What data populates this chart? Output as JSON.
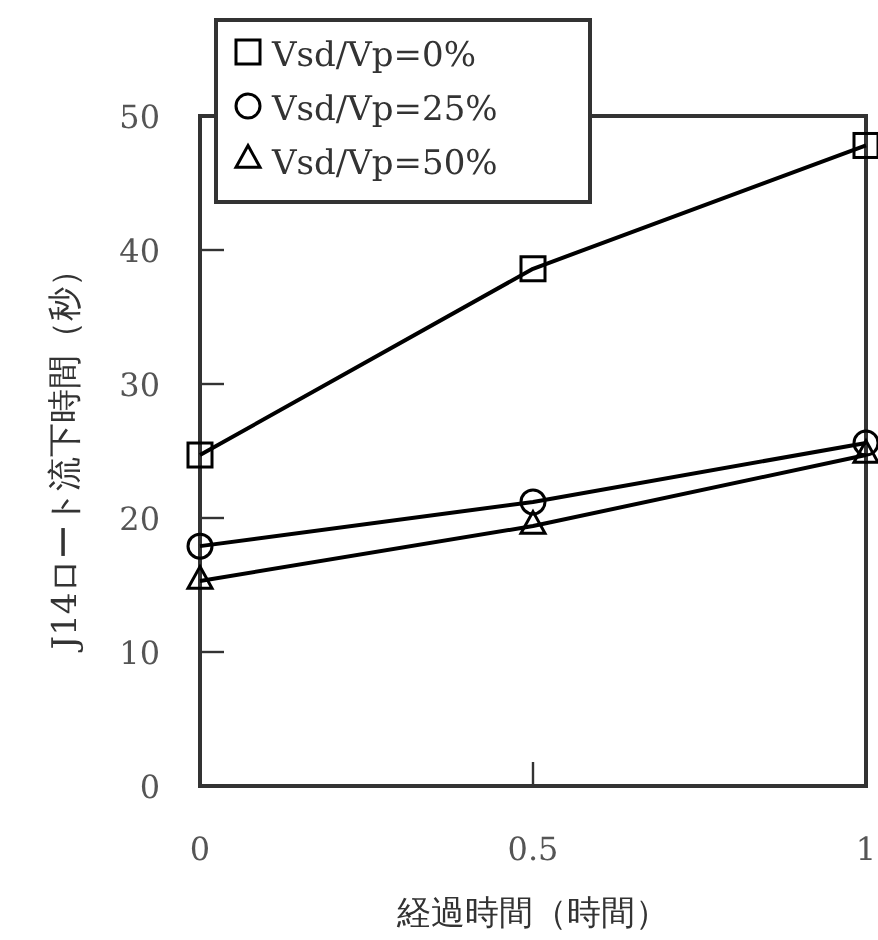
{
  "chart_data": {
    "type": "line",
    "xlabel": "経過時間（時間）",
    "ylabel": "J14ロート流下時間（秒）",
    "x": [
      0,
      0.5,
      1
    ],
    "series": [
      {
        "name": "Vsd/Vp=0%",
        "color": "#000000",
        "marker": "square",
        "values": [
          24.7,
          38.6,
          47.8
        ]
      },
      {
        "name": "Vsd/Vp=25%",
        "color": "#000000",
        "marker": "circle",
        "values": [
          17.9,
          21.2,
          25.6
        ]
      },
      {
        "name": "Vsd/Vp=50%",
        "color": "#000000",
        "marker": "triangle",
        "values": [
          15.3,
          19.4,
          24.7
        ]
      }
    ],
    "xlim": [
      0,
      1
    ],
    "xticks": [
      0,
      0.5,
      1
    ],
    "ylim": [
      0,
      50
    ],
    "yticks": [
      0,
      10,
      20,
      30,
      40,
      50
    ],
    "grid": false,
    "legend": "top left",
    "line_style": "solid"
  }
}
